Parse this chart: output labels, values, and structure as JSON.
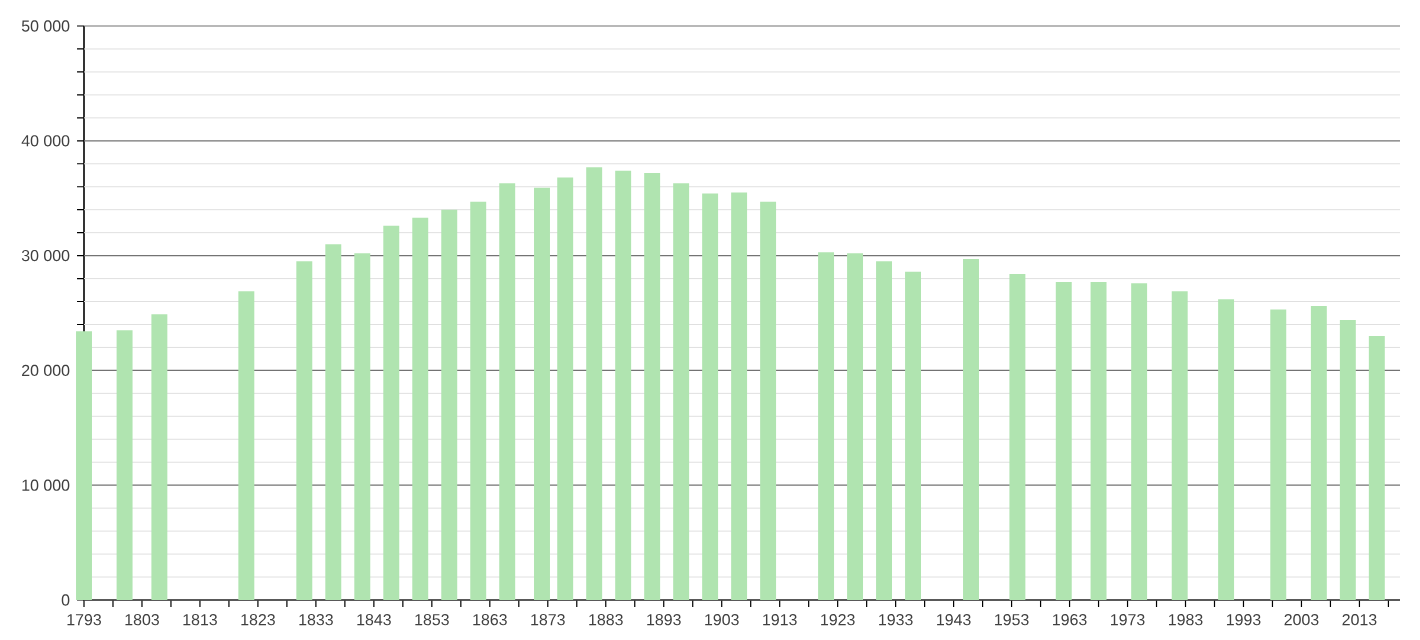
{
  "chart_data": {
    "type": "bar",
    "color": "#b0e4b0",
    "x": [
      1793,
      1800,
      1806,
      1821,
      1831,
      1836,
      1841,
      1846,
      1851,
      1856,
      1861,
      1866,
      1872,
      1876,
      1881,
      1886,
      1891,
      1896,
      1901,
      1906,
      1911,
      1921,
      1926,
      1931,
      1936,
      1946,
      1954,
      1962,
      1968,
      1975,
      1982,
      1990,
      1999,
      2006,
      2011,
      2016
    ],
    "values": [
      23400,
      23500,
      24900,
      26900,
      29500,
      31000,
      30200,
      32600,
      33300,
      34000,
      34700,
      36300,
      35900,
      36800,
      37700,
      37400,
      37200,
      36300,
      35400,
      35500,
      34700,
      30300,
      30200,
      29500,
      28600,
      29700,
      28400,
      27700,
      27700,
      27600,
      26900,
      26200,
      25300,
      25600,
      24400,
      23000
    ],
    "xlim": [
      1793,
      2020
    ],
    "xticks": [
      1793,
      {
        "value": 1798,
        "label": null
      },
      1803,
      {
        "value": 1808,
        "label": null
      },
      1813,
      {
        "value": 1818,
        "label": null
      },
      1823,
      {
        "value": 1828,
        "label": null
      },
      1833,
      {
        "value": 1838,
        "label": null
      },
      1843,
      {
        "value": 1848,
        "label": null
      },
      1853,
      {
        "value": 1858,
        "label": null
      },
      1863,
      {
        "value": 1868,
        "label": null
      },
      1873,
      {
        "value": 1878,
        "label": null
      },
      1883,
      {
        "value": 1888,
        "label": null
      },
      1893,
      {
        "value": 1898,
        "label": null
      },
      1903,
      {
        "value": 1908,
        "label": null
      },
      1913,
      {
        "value": 1918,
        "label": null
      },
      1923,
      {
        "value": 1928,
        "label": null
      },
      1933,
      {
        "value": 1938,
        "label": null
      },
      1943,
      {
        "value": 1948,
        "label": null
      },
      1953,
      {
        "value": 1958,
        "label": null
      },
      1963,
      {
        "value": 1968,
        "label": null
      },
      1973,
      {
        "value": 1978,
        "label": null
      },
      1983,
      {
        "value": 1988,
        "label": null
      },
      1993,
      {
        "value": 1998,
        "label": null
      },
      2003,
      {
        "value": 2008,
        "label": null
      },
      2013,
      {
        "value": 2018,
        "label": null
      }
    ],
    "ylim": [
      0,
      50000
    ],
    "yticks": [
      0,
      {
        "value": 2000,
        "label": null
      },
      {
        "value": 4000,
        "label": null
      },
      {
        "value": 6000,
        "label": null
      },
      {
        "value": 8000,
        "label": null
      },
      {
        "value": 10000,
        "label": "10 000"
      },
      {
        "value": 12000,
        "label": null
      },
      {
        "value": 14000,
        "label": null
      },
      {
        "value": 16000,
        "label": null
      },
      {
        "value": 18000,
        "label": null
      },
      {
        "value": 20000,
        "label": "20 000"
      },
      {
        "value": 22000,
        "label": null
      },
      {
        "value": 24000,
        "label": null
      },
      {
        "value": 26000,
        "label": null
      },
      {
        "value": 28000,
        "label": null
      },
      {
        "value": 30000,
        "label": "30 000"
      },
      {
        "value": 32000,
        "label": null
      },
      {
        "value": 34000,
        "label": null
      },
      {
        "value": 36000,
        "label": null
      },
      {
        "value": 38000,
        "label": null
      },
      {
        "value": 40000,
        "label": "40 000"
      },
      {
        "value": 42000,
        "label": null
      },
      {
        "value": 44000,
        "label": null
      },
      {
        "value": 46000,
        "label": null
      },
      {
        "value": 48000,
        "label": null
      },
      {
        "value": 50000,
        "label": "50 000"
      }
    ],
    "grid": "y"
  }
}
